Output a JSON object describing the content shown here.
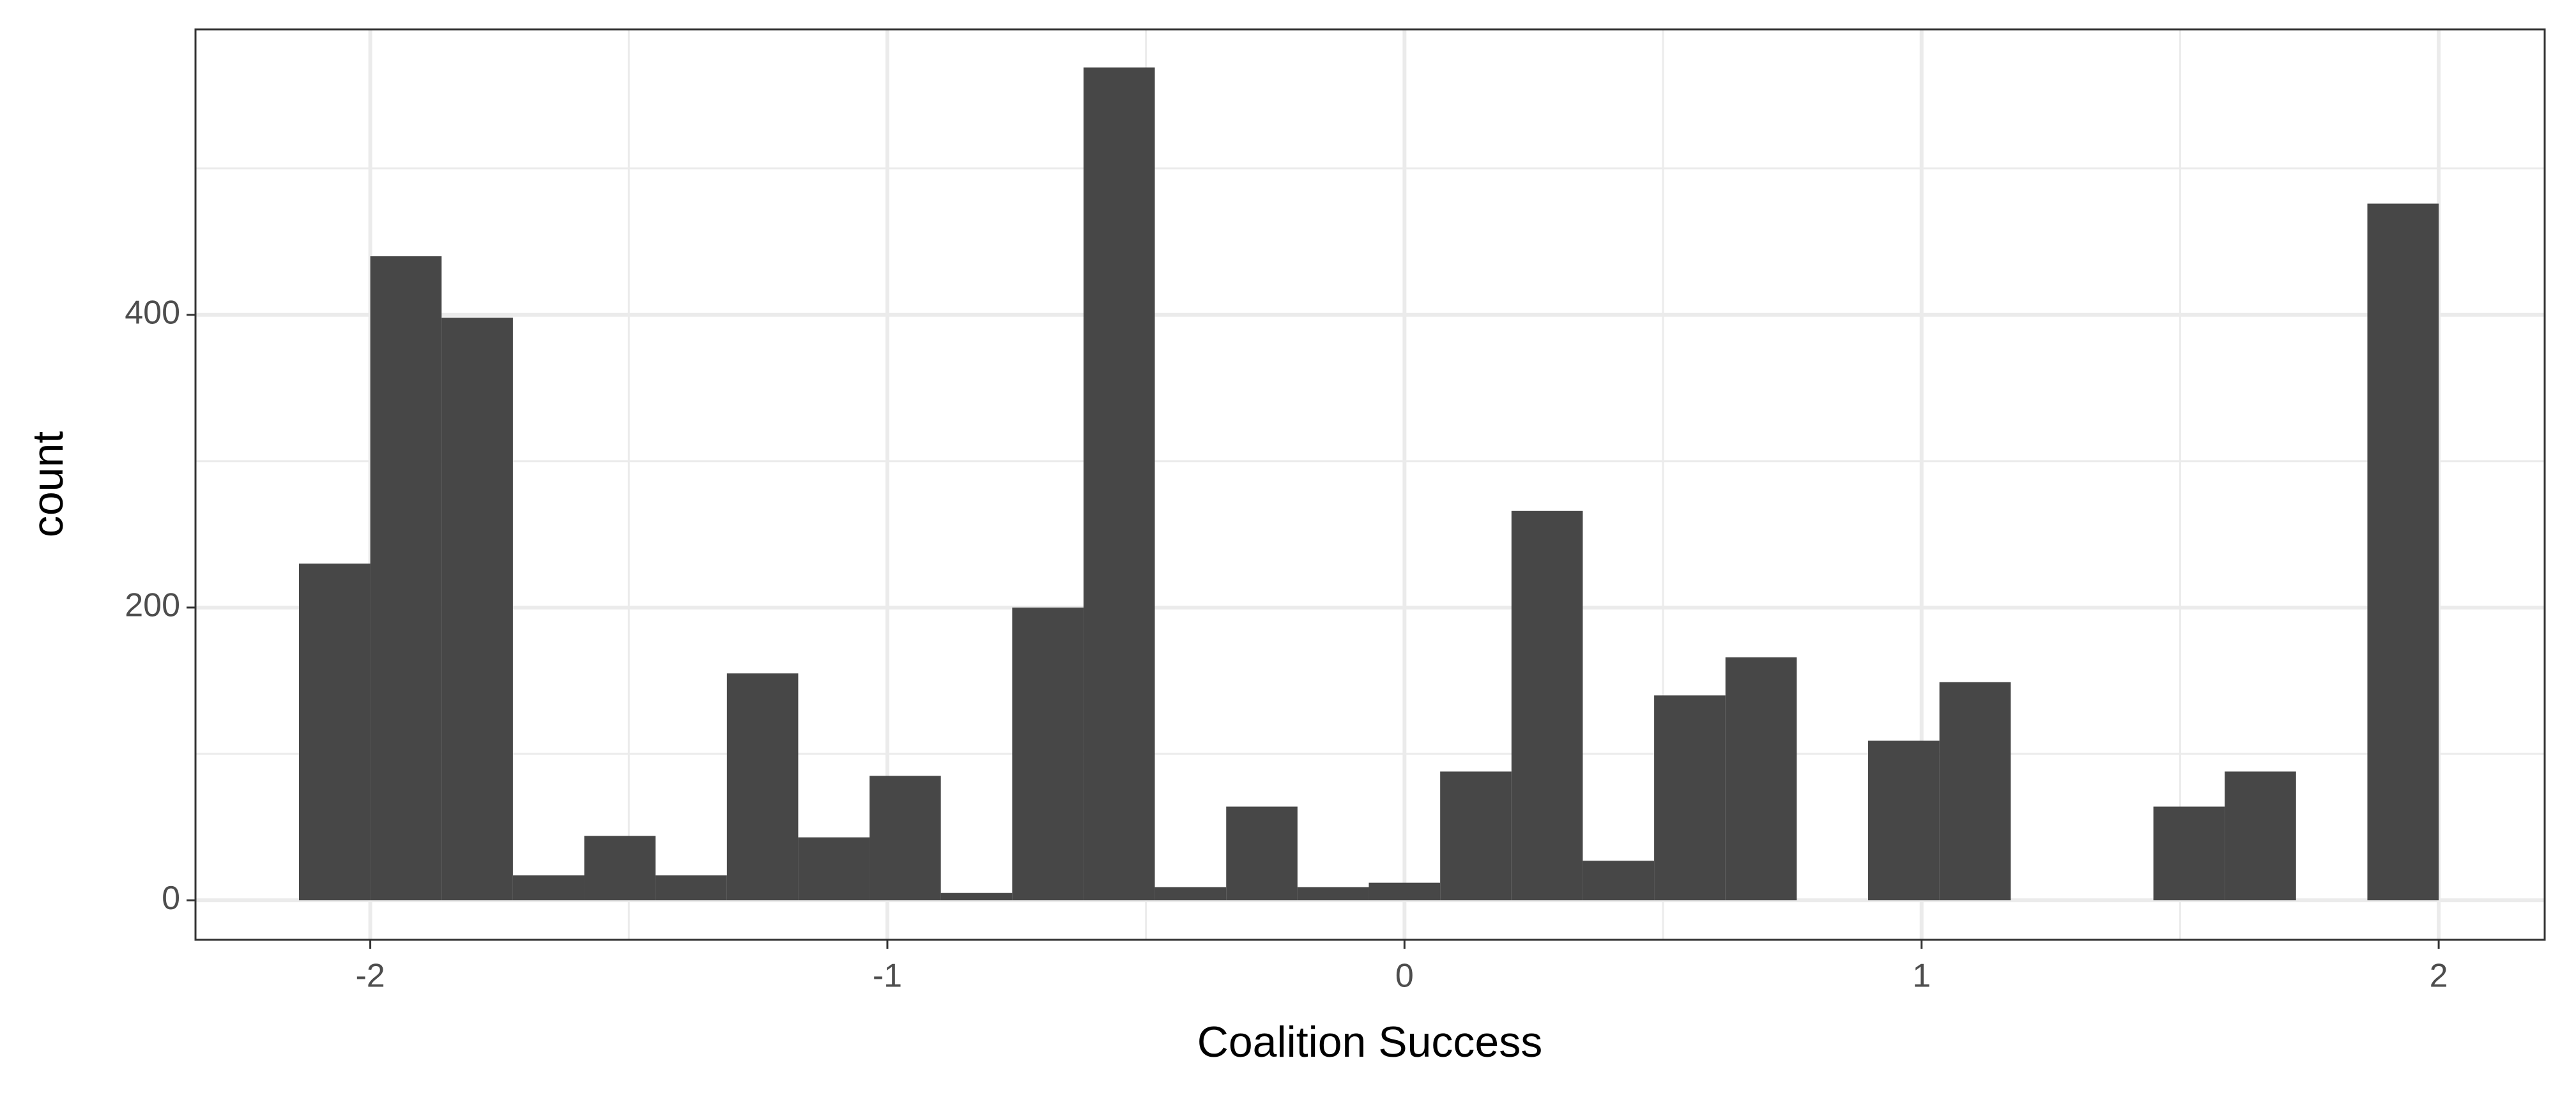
{
  "chart_data": {
    "type": "histogram",
    "x_label": "Coalition Success",
    "y_label": "count",
    "bins": [
      -2.1379,
      -2.0,
      -1.8621,
      -1.7241,
      -1.5862,
      -1.4483,
      -1.3103,
      -1.1724,
      -1.0345,
      -0.8966,
      -0.7586,
      -0.6207,
      -0.4828,
      -0.3448,
      -0.2069,
      -0.069,
      0.069,
      0.2069,
      0.3448,
      0.4828,
      0.6207,
      0.7586,
      0.8966,
      1.0345,
      1.1724,
      1.3103,
      1.4483,
      1.5862,
      1.7241,
      1.8621,
      2.0
    ],
    "values": [
      230,
      440,
      398,
      17,
      44,
      17,
      155,
      43,
      85,
      5,
      200,
      569,
      9,
      64,
      9,
      12,
      88,
      266,
      27,
      140,
      166,
      0,
      109,
      149,
      0,
      0,
      64,
      88,
      0,
      476
    ],
    "color": "#474747",
    "xlim": [
      -2.338,
      2.205
    ],
    "xticks": [
      -2,
      -1,
      0,
      1,
      2
    ],
    "x_minor_grid": [
      -1.5,
      -0.5,
      0.5,
      1.5
    ],
    "ylim": [
      -27,
      595
    ],
    "yticks": [
      0,
      200,
      400
    ],
    "y_minor_grid": [
      100,
      300,
      500
    ],
    "grid": true
  }
}
